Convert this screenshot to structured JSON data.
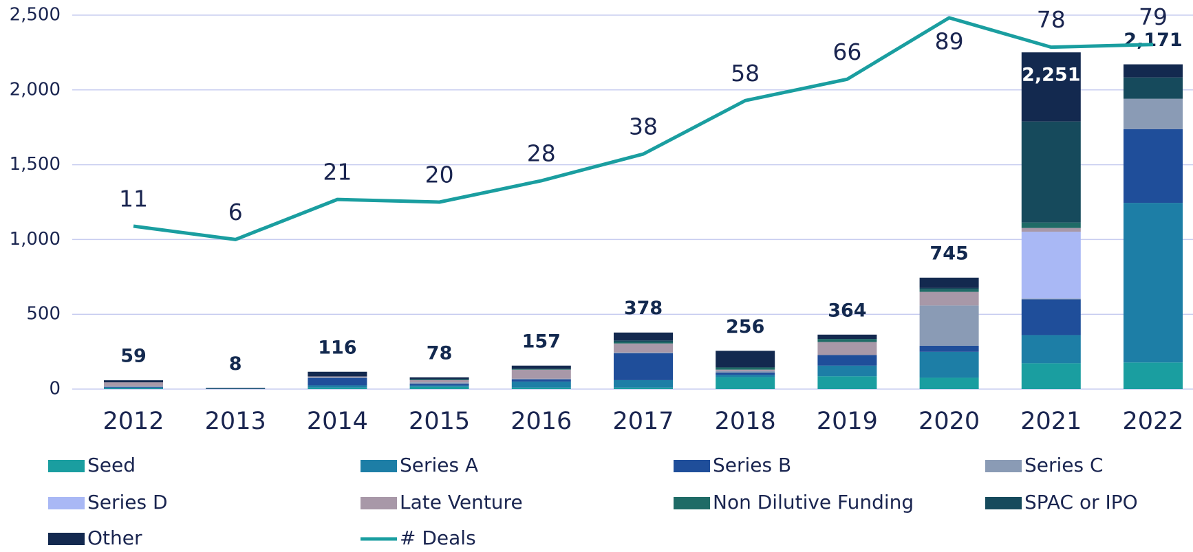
{
  "chart_data": {
    "type": "bar",
    "categories": [
      "2012",
      "2013",
      "2014",
      "2015",
      "2016",
      "2017",
      "2018",
      "2019",
      "2020",
      "2021",
      "2022"
    ],
    "series": [
      {
        "name": "Seed",
        "color": "#1a9ea0",
        "values": [
          5,
          0,
          10,
          15,
          10,
          10,
          80,
          86,
          76,
          173,
          178
        ]
      },
      {
        "name": "Series A",
        "color": "#1d7ea6",
        "values": [
          5,
          3,
          15,
          10,
          40,
          50,
          15,
          71,
          173,
          188,
          1067
        ]
      },
      {
        "name": "Series B",
        "color": "#1f4e9a",
        "values": [
          5,
          0,
          50,
          10,
          15,
          180,
          15,
          71,
          41,
          239,
          493
        ]
      },
      {
        "name": "Series C",
        "color": "#8a9bb5",
        "values": [
          5,
          0,
          5,
          10,
          5,
          5,
          10,
          0,
          269,
          5,
          203
        ]
      },
      {
        "name": "Series D",
        "color": "#a9b8f5",
        "values": [
          0,
          0,
          0,
          0,
          0,
          0,
          0,
          0,
          0,
          447,
          0
        ]
      },
      {
        "name": "Late Venture",
        "color": "#a898a8",
        "values": [
          25,
          0,
          5,
          15,
          60,
          60,
          10,
          87,
          91,
          25,
          0
        ]
      },
      {
        "name": "Non Dilutive Funding",
        "color": "#1f6b66",
        "values": [
          0,
          0,
          0,
          5,
          5,
          10,
          15,
          20,
          16,
          36,
          0
        ]
      },
      {
        "name": "SPAC or IPO",
        "color": "#164a5c",
        "values": [
          0,
          0,
          0,
          0,
          0,
          10,
          0,
          0,
          10,
          676,
          142
        ]
      },
      {
        "name": "Other",
        "color": "#13294f",
        "values": [
          14,
          5,
          31,
          13,
          22,
          53,
          111,
          29,
          69,
          462,
          88
        ]
      },
      {
        "name": "# Deals",
        "type": "line",
        "axis": "y2",
        "color": "#1a9ea0",
        "values": [
          11,
          6,
          21,
          20,
          28,
          38,
          58,
          66,
          89,
          78,
          79
        ]
      }
    ],
    "totals": [
      59,
      8,
      116,
      78,
      157,
      378,
      256,
      364,
      745,
      2251,
      2171
    ],
    "totals_labels": [
      "59",
      "8",
      "116",
      "78",
      "157",
      "378",
      "256",
      "364",
      "745",
      "2,251",
      "2,171"
    ],
    "ylim": [
      0,
      2500
    ],
    "yticks": [
      0,
      500,
      {
        "value": 1000,
        "label": "1,000"
      },
      {
        "value": 1500,
        "label": "1,500"
      },
      {
        "value": 2000,
        "label": "2,000"
      },
      {
        "value": 2500,
        "label": "2,500"
      }
    ],
    "y2lim": [
      -50,
      90
    ],
    "grid": true
  }
}
